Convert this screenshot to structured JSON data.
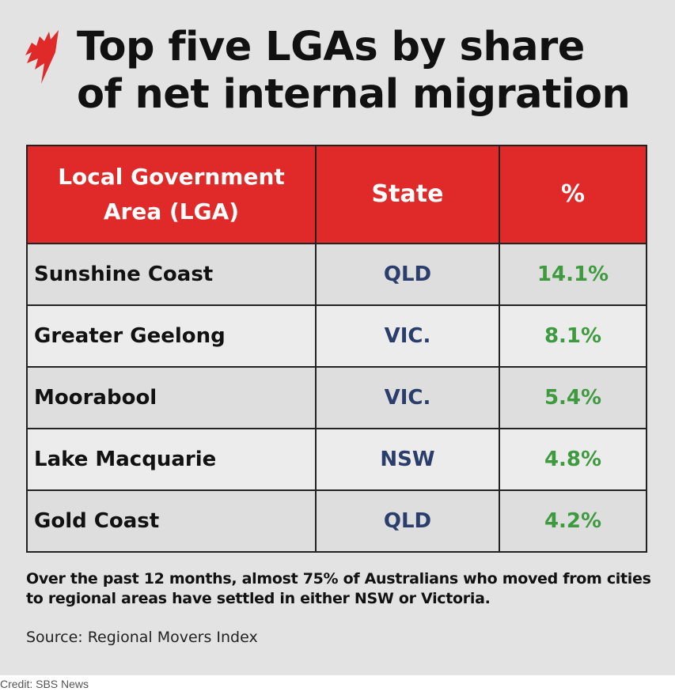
{
  "brand_color": "#e02a2a",
  "title": "Top five LGAs by share of net internal migration",
  "logo": "SBS",
  "table": {
    "headers": [
      "Local Government Area (LGA)",
      "State",
      "%"
    ],
    "rows": [
      {
        "lga": "Sunshine Coast",
        "state": "QLD",
        "pct": "14.1%"
      },
      {
        "lga": "Greater Geelong",
        "state": "VIC.",
        "pct": "8.1%"
      },
      {
        "lga": "Moorabool",
        "state": "VIC.",
        "pct": "5.4%"
      },
      {
        "lga": "Lake Macquarie",
        "state": "NSW",
        "pct": "4.8%"
      },
      {
        "lga": "Gold Coast",
        "state": "QLD",
        "pct": "4.2%"
      }
    ]
  },
  "note": "Over the past 12 months, almost 75% of Australians who moved from cities to regional areas have settled in either NSW or Victoria.",
  "source": "Source: Regional Movers Index",
  "credit": "Credit: SBS News"
}
